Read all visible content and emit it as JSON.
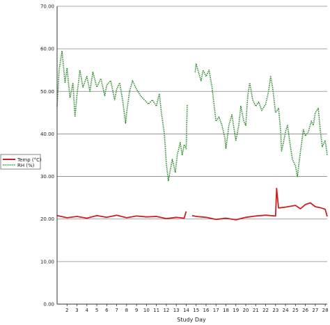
{
  "chart_data": {
    "type": "line",
    "xlabel": "Study Day",
    "ylabel": "",
    "title": "",
    "ylim": [
      0,
      70
    ],
    "xlim": [
      1,
      28.2
    ],
    "yticks": [
      "0.00",
      "10.00",
      "20.00",
      "30.00",
      "40.00",
      "50.00",
      "60.00",
      "70.00"
    ],
    "xticks": [
      "2",
      "3",
      "4",
      "5",
      "6",
      "7",
      "8",
      "9",
      "10",
      "11",
      "12",
      "13",
      "14",
      "15",
      "16",
      "17",
      "18",
      "19",
      "20",
      "21",
      "22",
      "23",
      "24",
      "25",
      "26",
      "27",
      "28"
    ],
    "grid": true,
    "legend_position": "left-center",
    "colors": {
      "temp": "#cc2020",
      "rh": "#2e8b2e",
      "grid": "#888888",
      "axis": "#333333"
    },
    "series": [
      {
        "name": "Temp (°C)",
        "style": "solid",
        "segments": [
          [
            [
              1.0,
              20.8
            ],
            [
              2.0,
              20.3
            ],
            [
              3.0,
              20.6
            ],
            [
              4.0,
              20.2
            ],
            [
              5.0,
              20.8
            ],
            [
              6.0,
              20.4
            ],
            [
              7.0,
              20.9
            ],
            [
              8.0,
              20.3
            ],
            [
              9.0,
              20.7
            ],
            [
              10.0,
              20.5
            ],
            [
              11.0,
              20.6
            ],
            [
              12.0,
              20.1
            ],
            [
              13.0,
              20.4
            ],
            [
              13.8,
              20.2
            ],
            [
              14.0,
              21.8
            ]
          ],
          [
            [
              14.6,
              20.8
            ],
            [
              15.0,
              20.6
            ],
            [
              16.0,
              20.4
            ],
            [
              17.0,
              19.9
            ],
            [
              18.0,
              20.2
            ],
            [
              19.0,
              19.8
            ],
            [
              20.0,
              20.4
            ],
            [
              21.0,
              20.7
            ],
            [
              22.0,
              20.9
            ],
            [
              23.0,
              20.7
            ],
            [
              23.1,
              27.2
            ],
            [
              23.3,
              22.6
            ],
            [
              24.0,
              22.8
            ],
            [
              25.0,
              23.2
            ],
            [
              25.5,
              22.4
            ],
            [
              26.0,
              23.4
            ],
            [
              26.5,
              23.8
            ],
            [
              27.0,
              22.9
            ],
            [
              27.6,
              22.6
            ],
            [
              28.0,
              22.3
            ],
            [
              28.2,
              20.6
            ]
          ]
        ]
      },
      {
        "name": "RH (%)",
        "style": "dotted",
        "segments": [
          [
            [
              1.0,
              46.5
            ],
            [
              1.2,
              55.0
            ],
            [
              1.5,
              59.5
            ],
            [
              1.8,
              52.0
            ],
            [
              2.0,
              55.5
            ],
            [
              2.3,
              48.5
            ],
            [
              2.6,
              52.0
            ],
            [
              2.8,
              44.0
            ],
            [
              3.0,
              49.0
            ],
            [
              3.3,
              55.0
            ],
            [
              3.6,
              51.0
            ],
            [
              4.0,
              53.5
            ],
            [
              4.3,
              50.0
            ],
            [
              4.6,
              54.5
            ],
            [
              5.0,
              51.0
            ],
            [
              5.4,
              53.0
            ],
            [
              5.8,
              49.0
            ],
            [
              6.0,
              51.5
            ],
            [
              6.4,
              52.5
            ],
            [
              6.8,
              48.0
            ],
            [
              7.0,
              50.5
            ],
            [
              7.3,
              52.0
            ],
            [
              7.6,
              48.0
            ],
            [
              7.9,
              42.5
            ],
            [
              8.0,
              45.0
            ],
            [
              8.3,
              50.0
            ],
            [
              8.6,
              52.5
            ],
            [
              9.0,
              50.5
            ],
            [
              9.4,
              49.0
            ],
            [
              9.8,
              48.0
            ],
            [
              10.2,
              47.0
            ],
            [
              10.6,
              48.0
            ],
            [
              11.0,
              46.5
            ],
            [
              11.3,
              49.5
            ],
            [
              11.5,
              45.0
            ],
            [
              11.8,
              40.0
            ],
            [
              12.0,
              33.0
            ],
            [
              12.2,
              29.0
            ],
            [
              12.4,
              31.5
            ],
            [
              12.6,
              34.0
            ],
            [
              12.9,
              31.0
            ],
            [
              13.1,
              35.0
            ],
            [
              13.4,
              38.0
            ],
            [
              13.6,
              35.0
            ],
            [
              13.8,
              37.5
            ],
            [
              14.0,
              36.5
            ],
            [
              14.1,
              47.0
            ]
          ],
          [
            [
              14.9,
              54.5
            ],
            [
              15.0,
              56.5
            ],
            [
              15.3,
              54.0
            ],
            [
              15.5,
              52.5
            ],
            [
              15.7,
              55.0
            ],
            [
              16.0,
              53.5
            ],
            [
              16.3,
              55.0
            ],
            [
              16.6,
              51.0
            ],
            [
              16.9,
              45.0
            ],
            [
              17.0,
              43.0
            ],
            [
              17.3,
              44.0
            ],
            [
              17.6,
              42.0
            ],
            [
              17.9,
              39.0
            ],
            [
              18.0,
              36.5
            ],
            [
              18.3,
              42.0
            ],
            [
              18.6,
              44.5
            ],
            [
              18.9,
              40.0
            ],
            [
              19.0,
              38.5
            ],
            [
              19.3,
              42.0
            ],
            [
              19.5,
              46.5
            ],
            [
              19.8,
              43.0
            ],
            [
              20.0,
              42.0
            ],
            [
              20.2,
              49.0
            ],
            [
              20.4,
              52.0
            ],
            [
              20.7,
              48.0
            ],
            [
              21.0,
              46.5
            ],
            [
              21.3,
              47.5
            ],
            [
              21.6,
              45.5
            ],
            [
              22.0,
              47.0
            ],
            [
              22.3,
              50.0
            ],
            [
              22.5,
              53.5
            ],
            [
              22.7,
              51.0
            ],
            [
              23.0,
              45.0
            ],
            [
              23.3,
              46.0
            ],
            [
              23.5,
              41.0
            ],
            [
              23.6,
              36.0
            ],
            [
              23.8,
              38.0
            ],
            [
              24.0,
              40.5
            ],
            [
              24.2,
              42.0
            ],
            [
              24.5,
              37.0
            ],
            [
              24.7,
              34.0
            ],
            [
              25.0,
              32.5
            ],
            [
              25.2,
              30.0
            ],
            [
              25.4,
              34.0
            ],
            [
              25.6,
              37.5
            ],
            [
              25.8,
              41.0
            ],
            [
              26.0,
              39.5
            ],
            [
              26.3,
              40.5
            ],
            [
              26.6,
              43.0
            ],
            [
              26.8,
              42.0
            ],
            [
              27.0,
              45.0
            ],
            [
              27.3,
              46.0
            ],
            [
              27.5,
              41.0
            ],
            [
              27.7,
              37.0
            ],
            [
              28.0,
              38.5
            ],
            [
              28.2,
              35.0
            ]
          ]
        ]
      }
    ]
  }
}
